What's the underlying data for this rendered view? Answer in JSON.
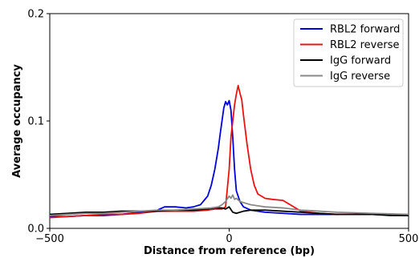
{
  "chart_data": {
    "type": "line",
    "title": "",
    "xlabel": "Distance from reference (bp)",
    "ylabel": "Average occupancy",
    "xlim": [
      -500,
      500
    ],
    "ylim": [
      0,
      0.2
    ],
    "xticks": [
      -500,
      0,
      500
    ],
    "xtick_labels": [
      "−500",
      "0",
      "500"
    ],
    "yticks": [
      0.0,
      0.1,
      0.2
    ],
    "ytick_labels": [
      "0.0",
      "0.1",
      "0.2"
    ],
    "grid": false,
    "legend_position": "top-right",
    "series": [
      {
        "name": "RBL2 forward",
        "color": "#0000dd",
        "x": [
          -500,
          -450,
          -400,
          -350,
          -300,
          -250,
          -200,
          -180,
          -150,
          -120,
          -100,
          -80,
          -60,
          -50,
          -40,
          -30,
          -25,
          -20,
          -15,
          -10,
          -5,
          0,
          5,
          10,
          15,
          20,
          30,
          40,
          60,
          100,
          150,
          200,
          300,
          400,
          500
        ],
        "y": [
          0.011,
          0.011,
          0.012,
          0.012,
          0.013,
          0.015,
          0.017,
          0.02,
          0.02,
          0.019,
          0.02,
          0.022,
          0.03,
          0.04,
          0.055,
          0.075,
          0.088,
          0.1,
          0.112,
          0.118,
          0.115,
          0.119,
          0.11,
          0.085,
          0.055,
          0.035,
          0.025,
          0.02,
          0.017,
          0.015,
          0.014,
          0.013,
          0.013,
          0.013,
          0.012
        ]
      },
      {
        "name": "RBL2 reverse",
        "color": "#ee1111",
        "x": [
          -500,
          -450,
          -400,
          -350,
          -300,
          -250,
          -200,
          -150,
          -100,
          -60,
          -40,
          -20,
          -10,
          0,
          5,
          10,
          15,
          20,
          25,
          30,
          35,
          40,
          50,
          60,
          70,
          80,
          100,
          120,
          150,
          170,
          200,
          250,
          300,
          400,
          500
        ],
        "y": [
          0.01,
          0.011,
          0.012,
          0.013,
          0.013,
          0.014,
          0.016,
          0.016,
          0.016,
          0.017,
          0.018,
          0.018,
          0.02,
          0.055,
          0.085,
          0.1,
          0.115,
          0.125,
          0.133,
          0.126,
          0.12,
          0.105,
          0.078,
          0.055,
          0.04,
          0.032,
          0.028,
          0.027,
          0.026,
          0.022,
          0.016,
          0.014,
          0.013,
          0.013,
          0.013
        ]
      },
      {
        "name": "IgG forward",
        "color": "#000000",
        "x": [
          -500,
          -450,
          -400,
          -350,
          -300,
          -250,
          -200,
          -150,
          -100,
          -60,
          -40,
          -20,
          -10,
          0,
          10,
          20,
          40,
          60,
          100,
          150,
          200,
          250,
          300,
          350,
          400,
          450,
          500
        ],
        "y": [
          0.013,
          0.014,
          0.015,
          0.015,
          0.016,
          0.016,
          0.016,
          0.017,
          0.017,
          0.018,
          0.019,
          0.019,
          0.018,
          0.02,
          0.015,
          0.014,
          0.016,
          0.017,
          0.017,
          0.016,
          0.015,
          0.014,
          0.013,
          0.013,
          0.013,
          0.012,
          0.012
        ]
      },
      {
        "name": "IgG reverse",
        "color": "#888888",
        "x": [
          -500,
          -450,
          -400,
          -350,
          -300,
          -250,
          -200,
          -150,
          -100,
          -50,
          -30,
          -20,
          -10,
          0,
          5,
          10,
          15,
          20,
          30,
          40,
          60,
          80,
          100,
          150,
          200,
          250,
          300,
          400,
          500
        ],
        "y": [
          0.012,
          0.013,
          0.014,
          0.014,
          0.015,
          0.016,
          0.017,
          0.017,
          0.018,
          0.019,
          0.02,
          0.022,
          0.025,
          0.03,
          0.028,
          0.031,
          0.027,
          0.028,
          0.025,
          0.024,
          0.022,
          0.021,
          0.02,
          0.019,
          0.017,
          0.016,
          0.015,
          0.014,
          0.013
        ]
      }
    ]
  }
}
